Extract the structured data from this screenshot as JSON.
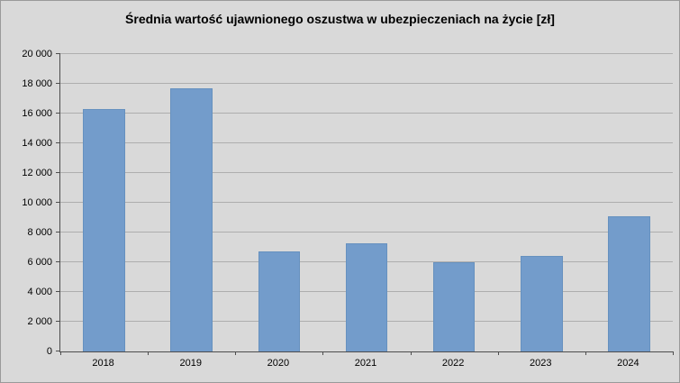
{
  "chart_data": {
    "type": "bar",
    "title": "Średnia wartość ujawnionego oszustwa w ubezpieczeniach na życie [zł]",
    "categories": [
      "2018",
      "2019",
      "2020",
      "2021",
      "2022",
      "2023",
      "2024"
    ],
    "values": [
      16300,
      17700,
      6700,
      7300,
      6000,
      6400,
      9100
    ],
    "xlabel": "",
    "ylabel": "",
    "ylim": [
      0,
      20000
    ],
    "ytick_step": 2000,
    "y_tick_labels": [
      "0",
      "2 000",
      "4 000",
      "6 000",
      "8 000",
      "10 000",
      "12 000",
      "14 000",
      "16 000",
      "18 000",
      "20 000"
    ],
    "grid": true,
    "legend": "none",
    "bar_color": "#739ccb",
    "background_color": "#d9d9d9",
    "axis_color": "#4d4d4d",
    "gridline_color": "#aeaeae"
  }
}
